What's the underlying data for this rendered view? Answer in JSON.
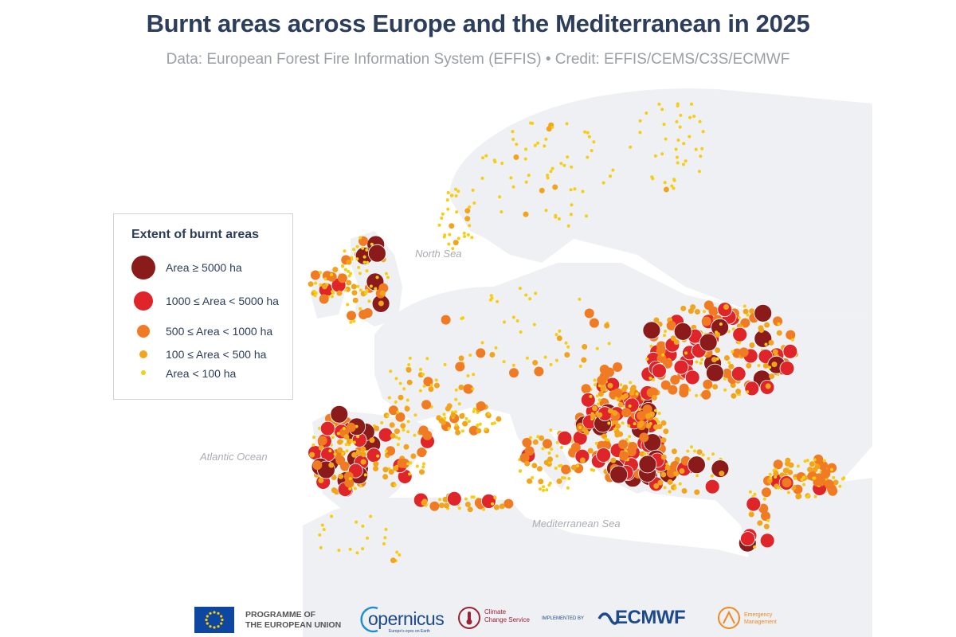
{
  "title": "Burnt areas across Europe and the Mediterranean in 2025",
  "subtitle": "Data: European Forest Fire Information System (EFFIS) • Credit: EFFIS/CEMS/C3S/ECMWF",
  "sea_labels": {
    "north_sea": "North Sea",
    "atlantic": "Atlantic Ocean",
    "mediterranean": "Mediterranean Sea"
  },
  "legend": {
    "title": "Extent of burnt areas",
    "items": [
      {
        "label": "Area ≥ 5000 ha",
        "color": "#8b1a1a"
      },
      {
        "label": "1000 ≤ Area < 5000 ha",
        "color": "#e0252a"
      },
      {
        "label": "500 ≤ Area < 1000 ha",
        "color": "#f07b22"
      },
      {
        "label": "100 ≤ Area < 500 ha",
        "color": "#f2a41c"
      },
      {
        "label": "Area < 100 ha",
        "color": "#f7cd10"
      }
    ]
  },
  "footer": {
    "eu_line1": "PROGRAMME OF",
    "eu_line2": "THE EUROPEAN UNION",
    "copernicus": "opernicus",
    "copernicus_tagline": "Europe's eyes on Earth",
    "c3s_line1": "Climate",
    "c3s_line2": "Change Service",
    "implemented_by": "IMPLEMENTED BY",
    "ecmwf": "ECMWF",
    "em_line1": "Emergency",
    "em_line2": "Management"
  }
}
